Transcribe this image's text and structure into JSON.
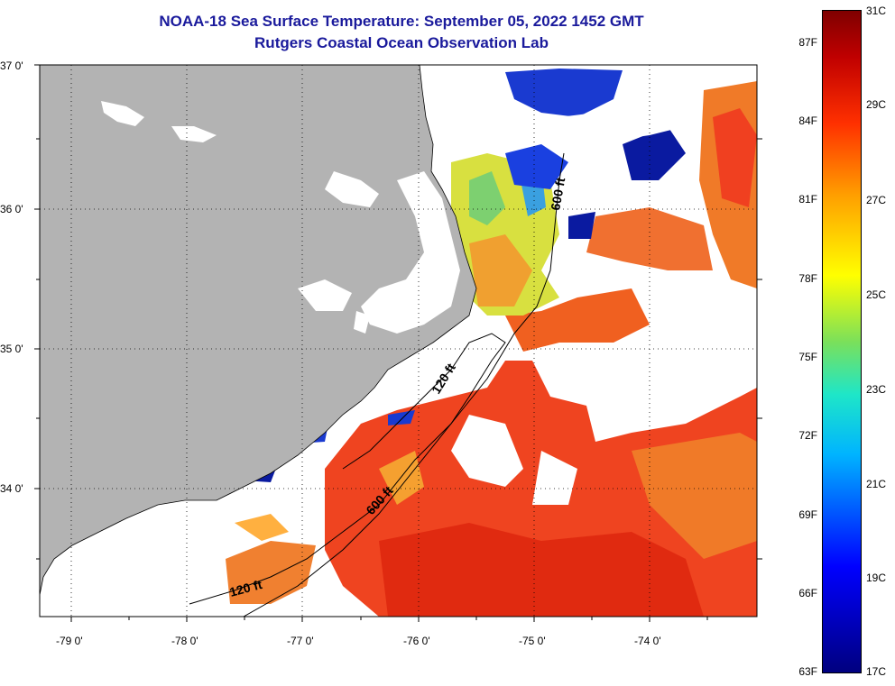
{
  "title_line1": "NOAA-18 Sea Surface Temperature:  September 05, 2022 1452 GMT",
  "title_line2": "Rutgers Coastal Ocean Observation Lab",
  "lat_labels": [
    "37 0'",
    "36 0'",
    "35 0'",
    "34 0'"
  ],
  "lon_labels": [
    "-79 0'",
    "-78 0'",
    "-77 0'",
    "-76 0'",
    "-75 0'",
    "-74 0'"
  ],
  "contours": [
    "120 ft",
    "600 ft"
  ],
  "colorbar": {
    "celsius": [
      "31C",
      "29C",
      "27C",
      "25C",
      "23C",
      "21C",
      "19C",
      "17C"
    ],
    "fahrenheit": [
      "87F",
      "84F",
      "81F",
      "78F",
      "75F",
      "72F",
      "69F",
      "66F",
      "63F"
    ],
    "colors": [
      "#7f0000",
      "#c00000",
      "#ff3000",
      "#ffa000",
      "#ffff00",
      "#7be05a",
      "#00b4ff",
      "#0000ff",
      "#00007f"
    ]
  },
  "land_color": "#b3b3b3"
}
